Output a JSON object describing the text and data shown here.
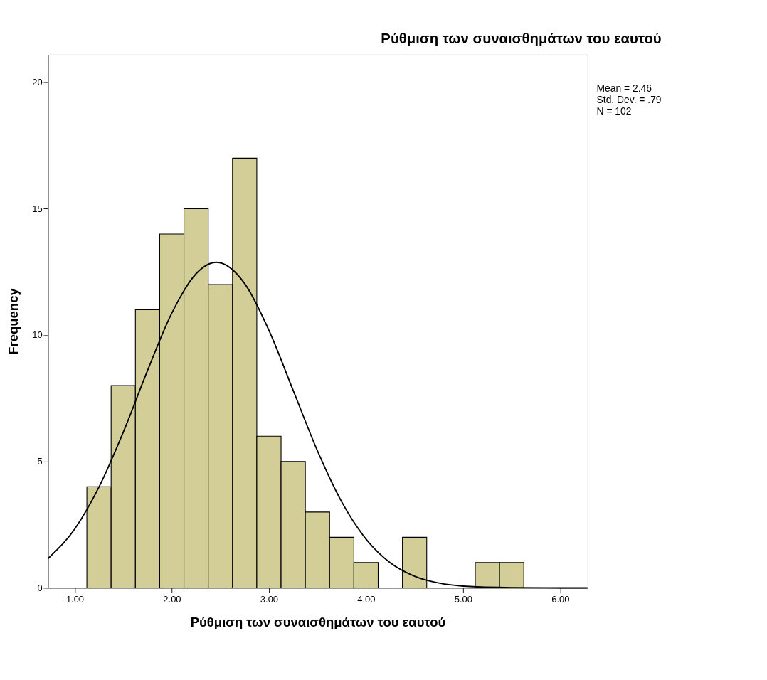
{
  "chart_data": {
    "type": "histogram",
    "title": "Ρύθμιση των συναισθημάτων του εαυτού",
    "xlabel": "Ρύθμιση των συναισθημάτων του εαυτού",
    "ylabel": "Frequency",
    "bins": [
      1.125,
      1.375,
      1.625,
      1.875,
      2.125,
      2.375,
      2.625,
      2.875,
      3.125,
      3.375,
      3.625,
      3.875,
      4.125,
      4.375,
      4.625,
      4.875,
      5.125,
      5.375,
      5.625
    ],
    "values": [
      4,
      8,
      11,
      14,
      15,
      12,
      17,
      6,
      5,
      3,
      2,
      1,
      0,
      2,
      0,
      0,
      1,
      1
    ],
    "color": "#d3ce97",
    "series": [
      {
        "type": "line",
        "color": "#000000",
        "x": [
          0.725,
          1.0,
          1.25,
          1.5,
          1.75,
          2.0,
          2.25,
          2.46,
          2.75,
          3.0,
          3.25,
          3.5,
          3.75,
          4.0,
          4.25,
          4.5,
          4.75,
          5.0,
          5.5,
          6.0,
          6.28
        ],
        "values": [
          1.16,
          2.33,
          3.99,
          6.16,
          8.6,
          10.87,
          12.43,
          12.88,
          12.04,
          10.19,
          7.81,
          5.42,
          3.4,
          1.93,
          0.99,
          0.46,
          0.19,
          0.07,
          0.01,
          0,
          0
        ]
      }
    ],
    "xlim": [
      0.725,
      6.28
    ],
    "xticks": [
      {
        "value": 1,
        "label": "1.00"
      },
      {
        "value": 2,
        "label": "2.00"
      },
      {
        "value": 3,
        "label": "3.00"
      },
      {
        "value": 4,
        "label": "4.00"
      },
      {
        "value": 5,
        "label": "5.00"
      },
      {
        "value": 6,
        "label": "6.00"
      }
    ],
    "ylim": [
      0,
      21.1
    ],
    "yticks": [
      0,
      5,
      10,
      15,
      20
    ],
    "grid": false,
    "annotations": [
      "Mean = 2.46",
      "Std. Dev. = .79",
      "N = 102"
    ]
  }
}
